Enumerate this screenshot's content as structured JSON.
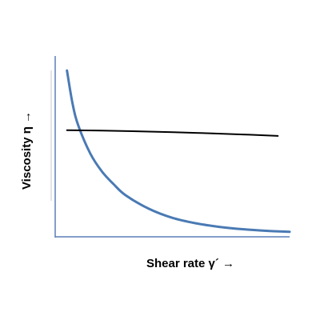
{
  "chart_data": {
    "type": "line",
    "title": "",
    "xlabel": "Shear rate γ´ →",
    "ylabel": "Viscosity η →",
    "xticks": [],
    "yticks": [],
    "xlim": [
      0,
      10
    ],
    "ylim": [
      0,
      10
    ],
    "grid": false,
    "legend": "none",
    "series": [
      {
        "color": "#4a7ab4",
        "x": [
          0.5,
          0.75,
          1.0,
          1.5,
          2.0,
          2.5,
          3.0,
          4.0,
          5.0,
          6.0,
          7.0,
          8.0,
          9.0,
          10.0
        ],
        "y": [
          9.2,
          7.3,
          6.1,
          4.6,
          3.6,
          2.9,
          2.3,
          1.55,
          1.05,
          0.75,
          0.55,
          0.42,
          0.33,
          0.28
        ]
      },
      {
        "color": "#000000",
        "x": [
          0.5,
          2.0,
          4.0,
          6.0,
          8.0,
          9.5
        ],
        "y": [
          5.9,
          5.87,
          5.82,
          5.75,
          5.66,
          5.58
        ]
      }
    ]
  }
}
